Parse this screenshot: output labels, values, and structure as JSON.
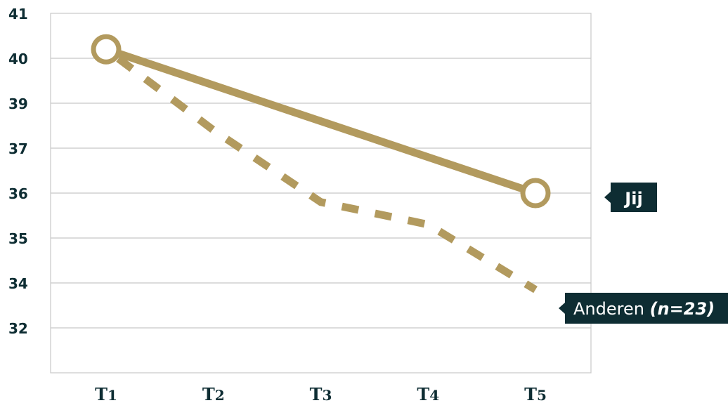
{
  "chart_data": {
    "type": "line",
    "categories": [
      "T1",
      "T2",
      "T3",
      "T4",
      "T5"
    ],
    "category_labels": [
      {
        "main": "T",
        "sub": "1"
      },
      {
        "main": "T",
        "sub": "2"
      },
      {
        "main": "T",
        "sub": "3"
      },
      {
        "main": "T",
        "sub": "4"
      },
      {
        "main": "T",
        "sub": "5"
      }
    ],
    "y_ticks": [
      "41",
      "40",
      "39",
      "37",
      "36",
      "35",
      "34",
      "32"
    ],
    "series": [
      {
        "name": "Jij",
        "style": "solid",
        "markers": "first-last",
        "points": [
          {
            "x": 1,
            "y": "40.2"
          },
          {
            "x": 5,
            "y": "36"
          }
        ]
      },
      {
        "name": "Anderen",
        "name_suffix": "(n=23)",
        "style": "dashed",
        "markers": "none",
        "points": [
          {
            "x": 1,
            "y": "40.2"
          },
          {
            "x": 2,
            "y": "37.8"
          },
          {
            "x": 3,
            "y": "35.8"
          },
          {
            "x": 4,
            "y": "35.3"
          },
          {
            "x": 5,
            "y": "33.7"
          }
        ]
      }
    ],
    "grid": true,
    "colors": {
      "series": "#b29a5e",
      "grid": "#c8c8c8",
      "axis_text": "#0e2d33",
      "label_bg": "#0e2d33",
      "label_text": "#ffffff"
    }
  }
}
